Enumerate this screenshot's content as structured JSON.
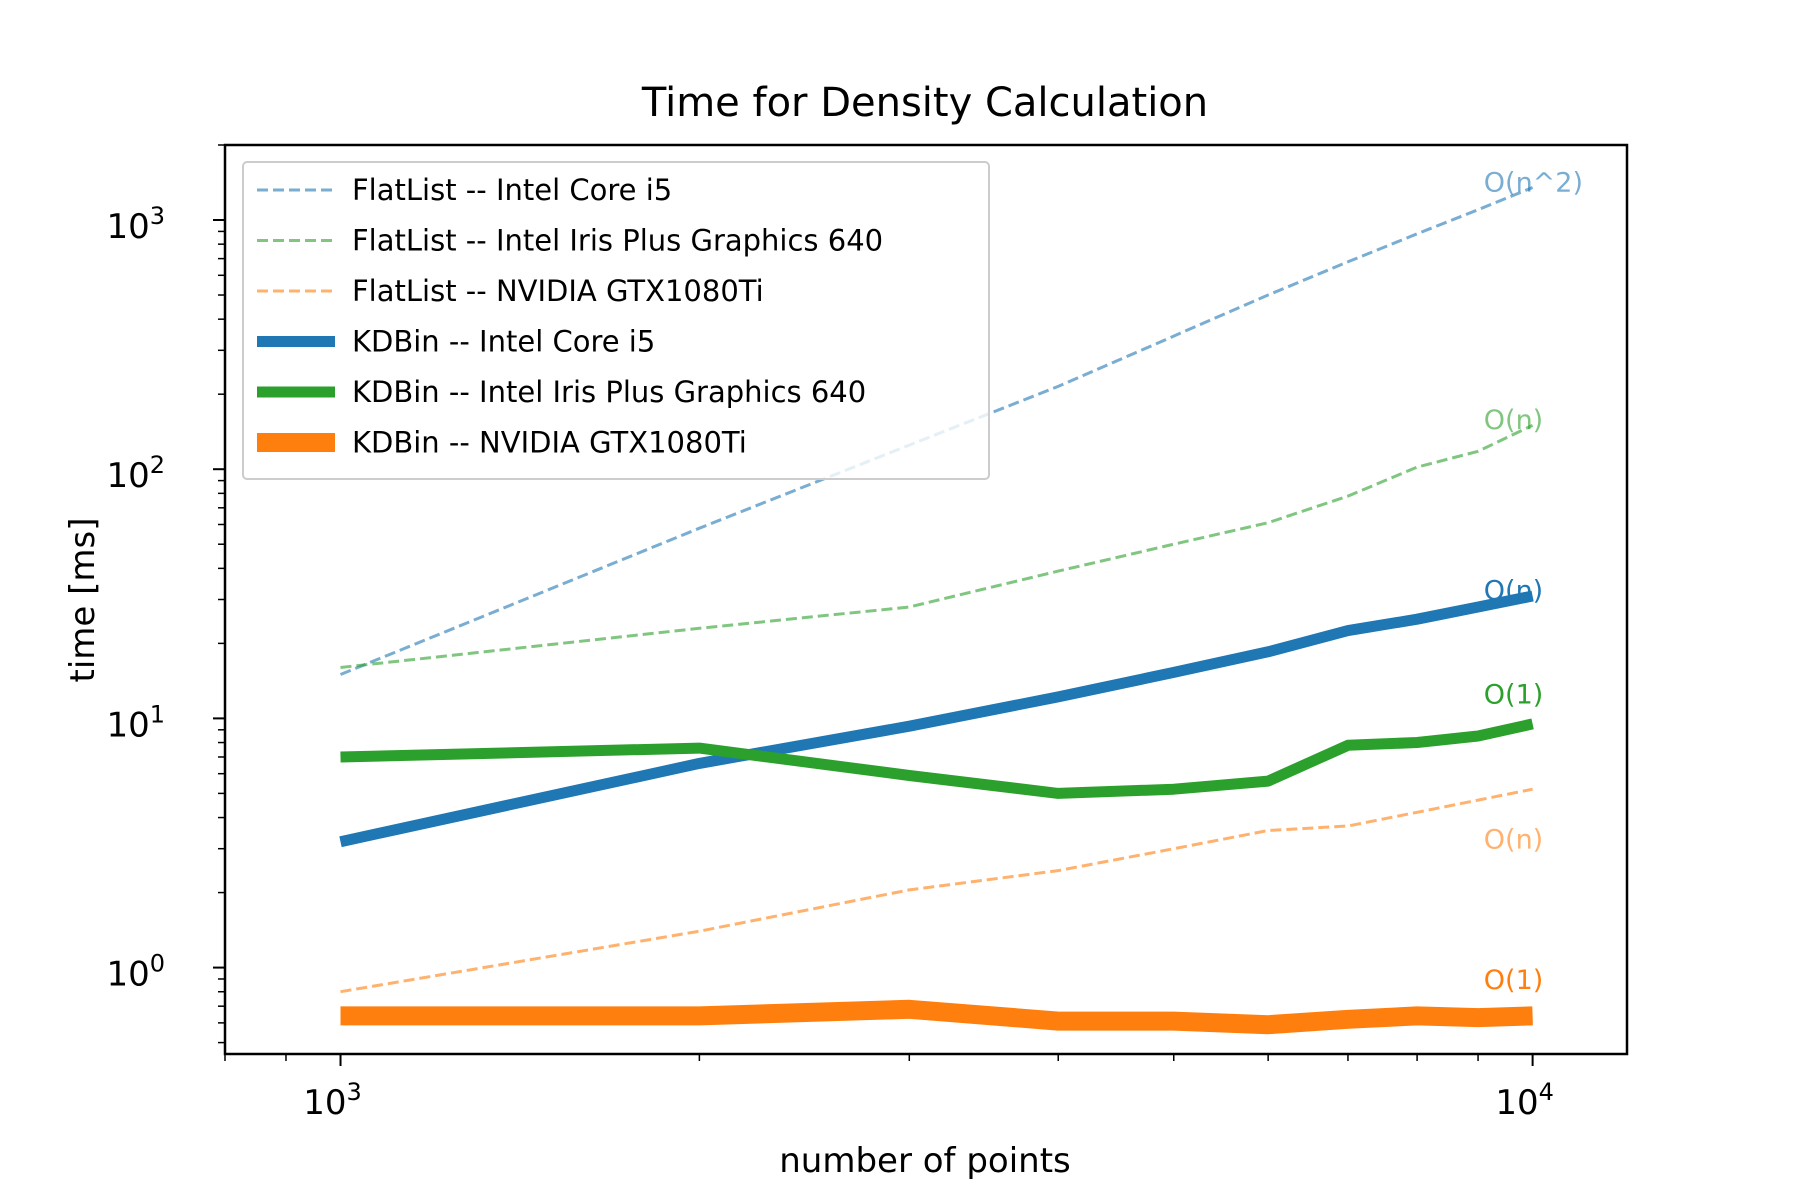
{
  "chart_data": {
    "type": "line",
    "title": "Time for Density Calculation",
    "xlabel": "number of points",
    "ylabel": "time [ms]",
    "x_scale": "log",
    "y_scale": "log",
    "xlim": [
      800,
      12000
    ],
    "ylim": [
      0.45,
      2000
    ],
    "grid": false,
    "legend_position": "top-left",
    "x_ticks": [
      {
        "value": 1000,
        "base": "10",
        "exp": "3"
      },
      {
        "value": 10000,
        "base": "10",
        "exp": "4"
      }
    ],
    "y_ticks": [
      {
        "value": 1,
        "base": "10",
        "exp": "0"
      },
      {
        "value": 10,
        "base": "10",
        "exp": "1"
      },
      {
        "value": 100,
        "base": "10",
        "exp": "2"
      },
      {
        "value": 1000,
        "base": "10",
        "exp": "3"
      }
    ],
    "series": [
      {
        "name": "FlatList -- Intel Core i5",
        "style": "dashed",
        "color": "#1f77b4",
        "opacity": 0.6,
        "width": 3,
        "x": [
          1000,
          2000,
          3000,
          4000,
          6000,
          7000,
          8000,
          9000,
          10000
        ],
        "y": [
          15,
          58,
          125,
          215,
          500,
          680,
          880,
          1100,
          1350
        ]
      },
      {
        "name": "FlatList -- Intel Iris Plus Graphics 640",
        "style": "dashed",
        "color": "#2ca02c",
        "opacity": 0.6,
        "width": 3,
        "x": [
          1000,
          2000,
          3000,
          4000,
          5000,
          6000,
          7000,
          8000,
          9000,
          10000
        ],
        "y": [
          16,
          23,
          28,
          39,
          50,
          61,
          78,
          102,
          118,
          150
        ]
      },
      {
        "name": "FlatList -- NVIDIA GTX1080Ti",
        "style": "dashed",
        "color": "#ff7f0e",
        "opacity": 0.6,
        "width": 3,
        "x": [
          1000,
          2000,
          3000,
          4000,
          5000,
          6000,
          7000,
          8000,
          9000,
          10000
        ],
        "y": [
          0.8,
          1.4,
          2.05,
          2.45,
          3.0,
          3.55,
          3.7,
          4.2,
          4.7,
          5.2
        ]
      },
      {
        "name": "KDBin -- Intel Core i5",
        "style": "solid",
        "color": "#1f77b4",
        "opacity": 1,
        "width": 11,
        "x": [
          1000,
          2000,
          3000,
          4000,
          5000,
          6000,
          7000,
          8000,
          9000,
          10000
        ],
        "y": [
          3.2,
          6.6,
          9.3,
          12.2,
          15.3,
          18.5,
          22.5,
          25,
          28,
          31
        ]
      },
      {
        "name": "KDBin -- Intel Iris Plus Graphics 640",
        "style": "solid",
        "color": "#2ca02c",
        "opacity": 1,
        "width": 11,
        "x": [
          1000,
          2000,
          3000,
          4000,
          5000,
          6000,
          7000,
          8000,
          9000,
          10000
        ],
        "y": [
          7.0,
          7.6,
          5.9,
          5.0,
          5.2,
          5.6,
          7.8,
          8.0,
          8.5,
          9.5
        ]
      },
      {
        "name": "KDBin -- NVIDIA GTX1080Ti",
        "style": "solid",
        "color": "#ff7f0e",
        "opacity": 1,
        "width": 19,
        "x": [
          1000,
          2000,
          3000,
          4000,
          5000,
          6000,
          7000,
          8000,
          9000,
          10000
        ],
        "y": [
          0.64,
          0.64,
          0.68,
          0.61,
          0.61,
          0.59,
          0.62,
          0.64,
          0.63,
          0.64
        ]
      }
    ],
    "annotations": [
      {
        "text": "O(n^2)",
        "x": 9100,
        "y": 1300,
        "color": "#1f77b4",
        "opacity": 0.6
      },
      {
        "text": "O(n)",
        "x": 9100,
        "y": 145,
        "color": "#2ca02c",
        "opacity": 0.6
      },
      {
        "text": "O(n)",
        "x": 9100,
        "y": 30,
        "color": "#1f77b4",
        "opacity": 1
      },
      {
        "text": "O(1)",
        "x": 9100,
        "y": 11.5,
        "color": "#2ca02c",
        "opacity": 1
      },
      {
        "text": "O(n)",
        "x": 9100,
        "y": 3.0,
        "color": "#ff7f0e",
        "opacity": 0.6
      },
      {
        "text": "O(1)",
        "x": 9100,
        "y": 0.82,
        "color": "#ff7f0e",
        "opacity": 1
      }
    ]
  }
}
